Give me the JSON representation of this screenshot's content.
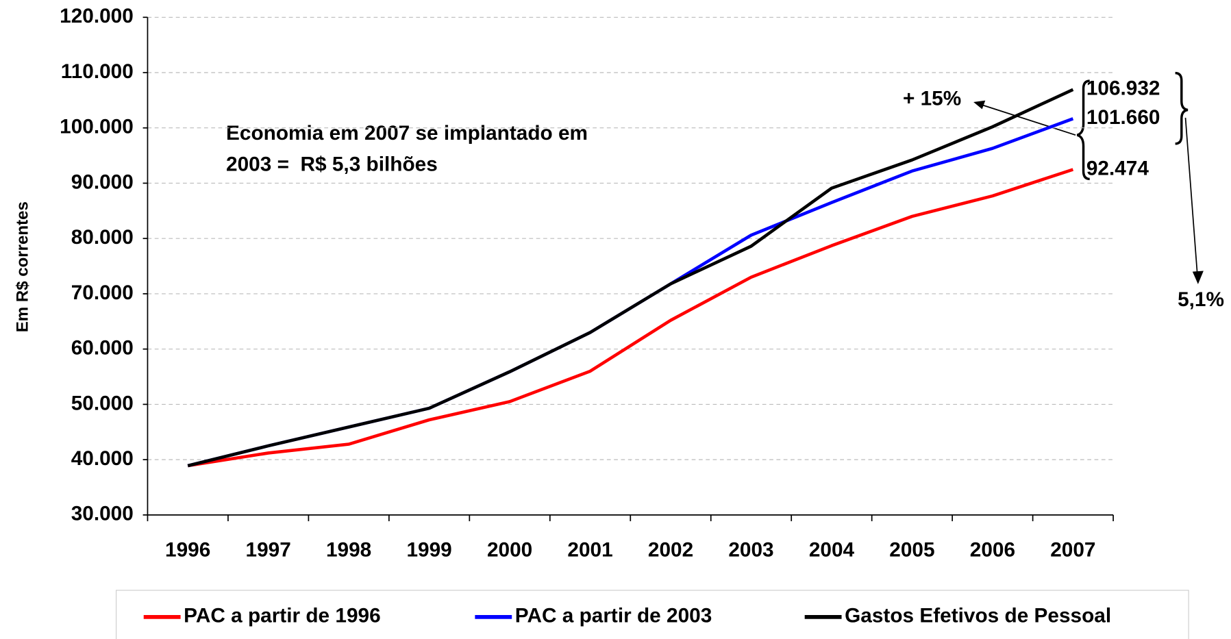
{
  "chart_data": {
    "type": "line",
    "ylabel": "Em R$ correntes",
    "categories": [
      "1996",
      "1997",
      "1998",
      "1999",
      "2000",
      "2001",
      "2002",
      "2003",
      "2004",
      "2005",
      "2006",
      "2007"
    ],
    "series": [
      {
        "name": "PAC a partir de 1996",
        "color": "#ff0000",
        "values": [
          38900,
          41200,
          42800,
          47200,
          50500,
          56000,
          65200,
          73000,
          78700,
          84000,
          87700,
          92474
        ],
        "value_labels": [
          null,
          null,
          null,
          null,
          null,
          null,
          null,
          null,
          null,
          null,
          null,
          "92.474"
        ]
      },
      {
        "name": "PAC a partir de 2003",
        "color": "#0000ff",
        "values": [
          38900,
          42500,
          45900,
          49300,
          55900,
          63000,
          71800,
          80600,
          86500,
          92200,
          96300,
          101660
        ],
        "value_labels": [
          null,
          null,
          null,
          null,
          null,
          null,
          null,
          null,
          null,
          null,
          null,
          "101.660"
        ]
      },
      {
        "name": "Gastos Efetivos de Pessoal",
        "color": "#000000",
        "values": [
          38900,
          42500,
          45900,
          49300,
          55900,
          63000,
          71800,
          78600,
          89100,
          94200,
          100200,
          106932
        ],
        "value_labels": [
          null,
          null,
          null,
          null,
          null,
          null,
          null,
          null,
          null,
          null,
          null,
          "106.932"
        ]
      }
    ],
    "ylim": [
      30000,
      120000
    ],
    "yticks": [
      {
        "value": 30000,
        "label": "30.000"
      },
      {
        "value": 40000,
        "label": "40.000"
      },
      {
        "value": 50000,
        "label": "50.000"
      },
      {
        "value": 60000,
        "label": "60.000"
      },
      {
        "value": 70000,
        "label": "70.000"
      },
      {
        "value": 80000,
        "label": "80.000"
      },
      {
        "value": 90000,
        "label": "90.000"
      },
      {
        "value": 100000,
        "label": "100.000"
      },
      {
        "value": 110000,
        "label": "110.000"
      },
      {
        "value": 120000,
        "label": "120.000"
      }
    ],
    "grid": true,
    "legend": "bottom",
    "annotations": [
      "Economia em 2007 se implantado em",
      "2003 =  R$ 5,3 bilhões",
      "+ 15%",
      "5,1%"
    ]
  }
}
